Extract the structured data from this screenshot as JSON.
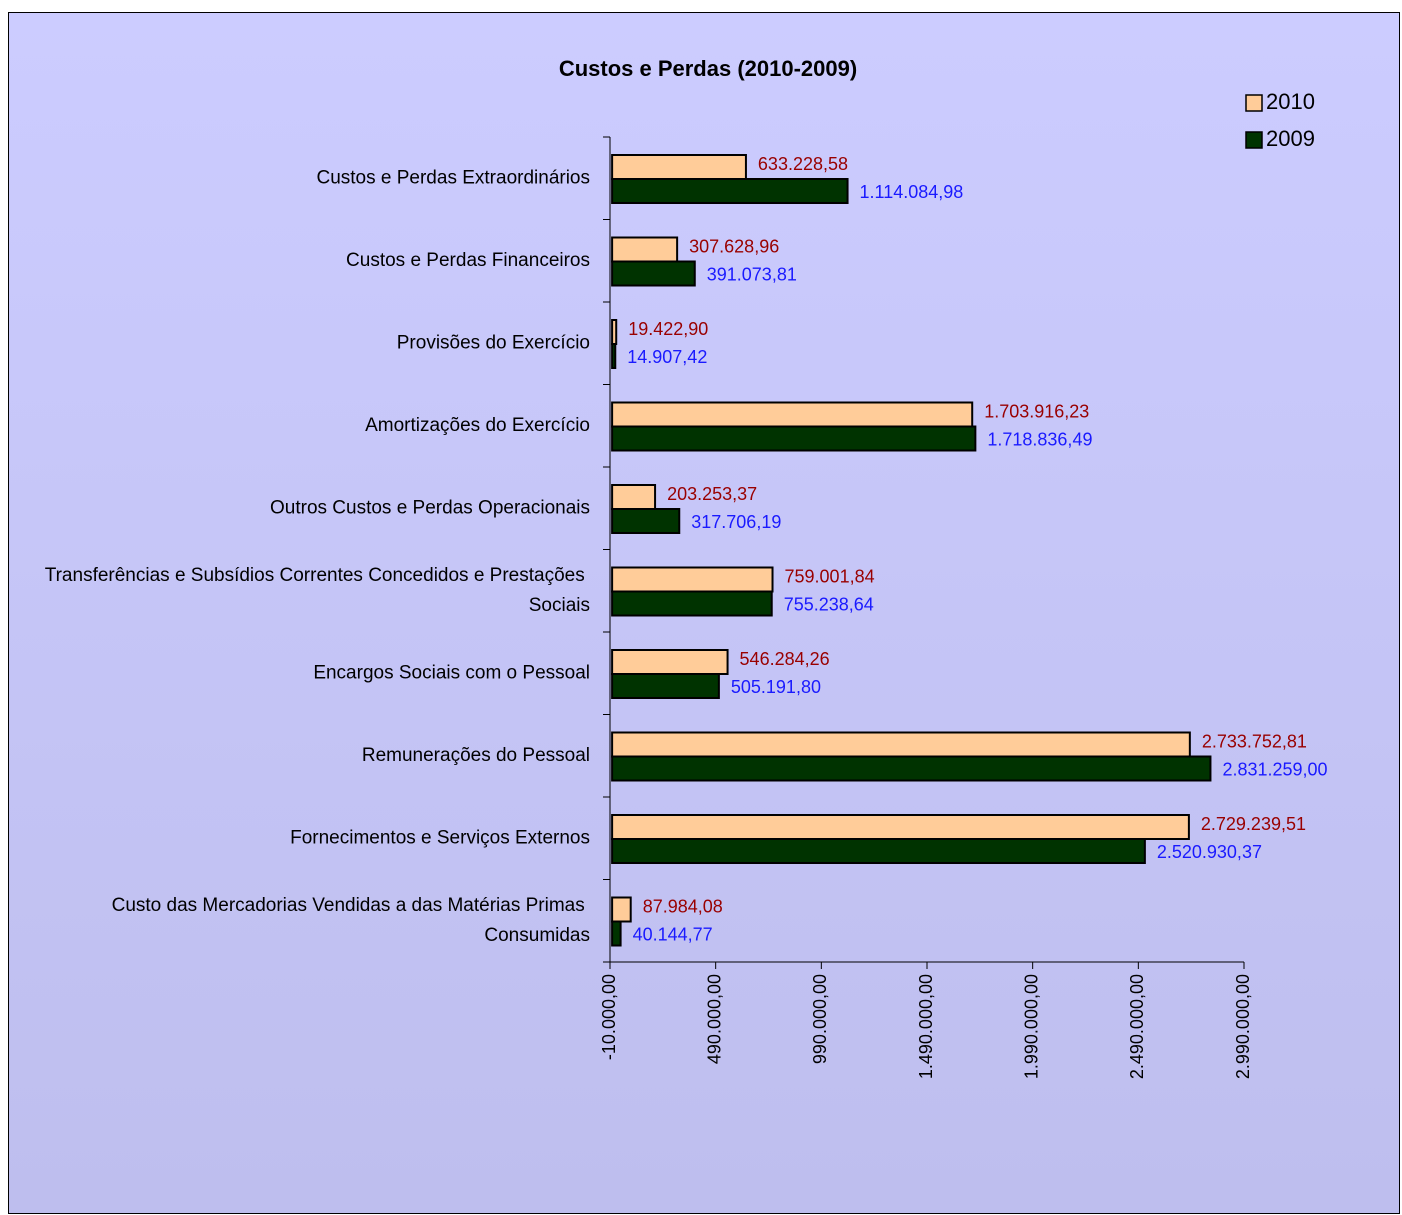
{
  "chart_data": {
    "type": "hbar",
    "title": "Custos e Perdas (2010-2009)",
    "categories": [
      "Custos e Perdas Extraordinários",
      "Custos e Perdas Financeiros",
      "Provisões do Exercício",
      "Amortizações do Exercício",
      "Outros Custos e Perdas Operacionais",
      "Transferências e Subsídios Correntes Concedidos e Prestações Sociais",
      "Encargos Sociais com o Pessoal",
      "Remunerações do Pessoal",
      "Fornecimentos e Serviços Externos",
      "Custo das Mercadorias Vendidas a das Matérias Primas Consumidas"
    ],
    "series": [
      {
        "name": "2010",
        "color": "#ffcc99",
        "label_color": "#990000",
        "values": [
          633228.58,
          307628.96,
          19422.9,
          1703916.23,
          203253.37,
          759001.84,
          546284.26,
          2733752.81,
          2729239.51,
          87984.08
        ],
        "value_labels": [
          "633.228,58",
          "307.628,96",
          "19.422,90",
          "1.703.916,23",
          "203.253,37",
          "759.001,84",
          "546.284,26",
          "2.733.752,81",
          "2.729.239,51",
          "87.984,08"
        ]
      },
      {
        "name": "2009",
        "color": "#003300",
        "label_color": "#1a1aff",
        "values": [
          1114084.98,
          391073.81,
          14907.42,
          1718836.49,
          317706.19,
          755238.64,
          505191.8,
          2831259.0,
          2520930.37,
          40144.77
        ],
        "value_labels": [
          "1.114.084,98",
          "391.073,81",
          "14.907,42",
          "1.718.836,49",
          "317.706,19",
          "755.238,64",
          "505.191,80",
          "2.831.259,00",
          "2.520.930,37",
          "40.144,77"
        ]
      }
    ],
    "xlim": [
      -10000,
      2990000
    ],
    "xticks": [
      {
        "value": -10000,
        "label": "-10.000,00"
      },
      {
        "value": 490000,
        "label": "490.000,00"
      },
      {
        "value": 990000,
        "label": "990.000,00"
      },
      {
        "value": 1490000,
        "label": "1.490.000,00"
      },
      {
        "value": 1990000,
        "label": "1.990.000,00"
      },
      {
        "value": 2490000,
        "label": "2.490.000,00"
      },
      {
        "value": 2990000,
        "label": "2.990.000,00"
      }
    ],
    "legend": "top-right"
  }
}
